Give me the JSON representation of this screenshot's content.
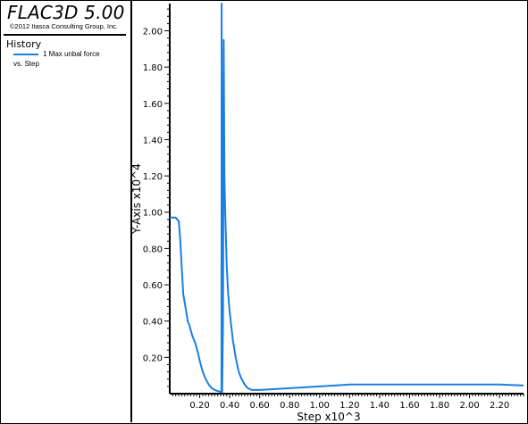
{
  "app": {
    "title": "FLAC3D 5.00",
    "copyright": "©2012 Itasca Consulting Group, Inc."
  },
  "legend": {
    "heading": "History",
    "series_label_line1": "1 Max unbal force",
    "series_label_line2": "vs. Step"
  },
  "colors": {
    "series": "#1a7fe0",
    "axis": "#000000",
    "background": "#ffffff"
  },
  "chart_data": {
    "type": "line",
    "xlabel": "Step x10^3",
    "ylabel": "Y-Axis x10^4",
    "xlim": [
      0,
      2.36
    ],
    "ylim": [
      0,
      2.15
    ],
    "x_ticks": [
      "0.20",
      "0.40",
      "0.60",
      "0.80",
      "1.00",
      "1.20",
      "1.40",
      "1.60",
      "1.80",
      "2.00",
      "2.20"
    ],
    "y_ticks": [
      "0.20",
      "0.40",
      "0.60",
      "0.80",
      "1.00",
      "1.20",
      "1.40",
      "1.60",
      "1.80",
      "2.00"
    ],
    "grid": false,
    "series": [
      {
        "name": "1 Max unbal force",
        "x": [
          0.0,
          0.04,
          0.06,
          0.07,
          0.08,
          0.09,
          0.1,
          0.11,
          0.12,
          0.13,
          0.14,
          0.15,
          0.16,
          0.17,
          0.18,
          0.19,
          0.2,
          0.22,
          0.24,
          0.26,
          0.28,
          0.3,
          0.32,
          0.34,
          0.345,
          0.346,
          0.35,
          0.355,
          0.36,
          0.365,
          0.37,
          0.38,
          0.39,
          0.4,
          0.42,
          0.44,
          0.46,
          0.48,
          0.5,
          0.52,
          0.55,
          0.6,
          0.7,
          0.8,
          0.9,
          1.0,
          1.1,
          1.2,
          1.4,
          1.6,
          1.8,
          2.0,
          2.2,
          2.36
        ],
        "y": [
          0.97,
          0.97,
          0.95,
          0.85,
          0.7,
          0.55,
          0.5,
          0.45,
          0.4,
          0.38,
          0.35,
          0.32,
          0.3,
          0.28,
          0.25,
          0.22,
          0.18,
          0.12,
          0.08,
          0.05,
          0.03,
          0.02,
          0.015,
          0.01,
          0.01,
          2.15,
          0.01,
          0.4,
          1.95,
          1.2,
          1.0,
          0.7,
          0.55,
          0.45,
          0.3,
          0.2,
          0.12,
          0.08,
          0.05,
          0.03,
          0.02,
          0.02,
          0.025,
          0.03,
          0.035,
          0.04,
          0.045,
          0.05,
          0.05,
          0.05,
          0.05,
          0.05,
          0.05,
          0.045
        ]
      }
    ]
  }
}
